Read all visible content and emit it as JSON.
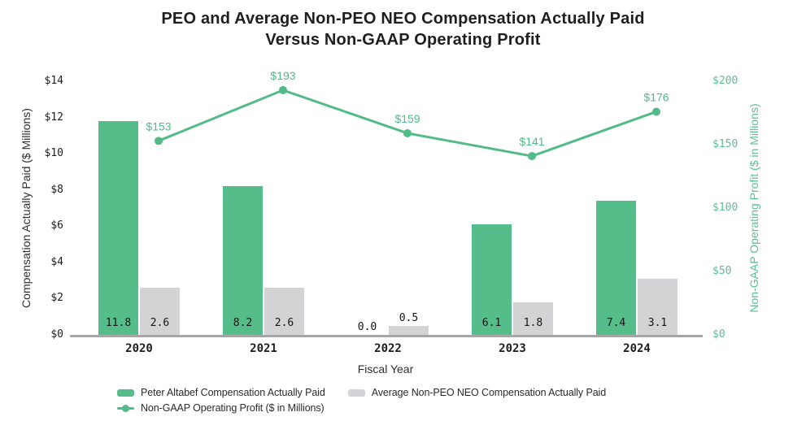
{
  "title": {
    "line1": "PEO and Average Non-PEO NEO Compensation Actually Paid",
    "line2": "Versus Non-GAAP Operating Profit"
  },
  "left_axis": {
    "title": "Compensation Actually Paid ($ Millions)",
    "ticks": [
      {
        "label": "$0",
        "value": 0
      },
      {
        "label": "$2",
        "value": 2
      },
      {
        "label": "$4",
        "value": 4
      },
      {
        "label": "$6",
        "value": 6
      },
      {
        "label": "$8",
        "value": 8
      },
      {
        "label": "$10",
        "value": 10
      },
      {
        "label": "$12",
        "value": 12
      },
      {
        "label": "$14",
        "value": 14
      }
    ]
  },
  "right_axis": {
    "title": "Non-GAAP Operating Profit ($ in Millions)",
    "ticks": [
      {
        "label": "$0",
        "value": 0
      },
      {
        "label": "$50",
        "value": 50
      },
      {
        "label": "$100",
        "value": 100
      },
      {
        "label": "$150",
        "value": 150
      },
      {
        "label": "$200",
        "value": 200
      }
    ]
  },
  "x_axis": {
    "title": "Fiscal Year"
  },
  "chart_data": {
    "type": "bar",
    "categories": [
      "2020",
      "2021",
      "2022",
      "2023",
      "2024"
    ],
    "series": [
      {
        "name": "Peter Altabef Compensation Actually Paid",
        "type": "bar",
        "axis": "left",
        "color": "#55BD8A",
        "values": [
          11.8,
          8.2,
          0.0,
          6.1,
          7.4
        ]
      },
      {
        "name": "Average Non-PEO NEO Compensation Actually Paid",
        "type": "bar",
        "axis": "left",
        "color": "#D3D3D5",
        "values": [
          2.6,
          2.6,
          0.5,
          1.8,
          3.1
        ]
      },
      {
        "name": "Non-GAAP Operating Profit ($ in Millions)",
        "type": "line",
        "axis": "right",
        "color": "#53BB87",
        "values": [
          153,
          193,
          159,
          141,
          176
        ],
        "point_labels": [
          "$153",
          "$193",
          "$159",
          "$141",
          "$176"
        ]
      }
    ],
    "title": "PEO and Average Non-PEO NEO Compensation Actually Paid Versus Non-GAAP Operating Profit",
    "xlabel": "Fiscal Year",
    "ylabel_left": "Compensation Actually Paid ($ Millions)",
    "ylabel_right": "Non-GAAP Operating Profit ($ in Millions)",
    "ylim_left": [
      0,
      14
    ],
    "ylim_right": [
      0,
      200
    ],
    "grid": false,
    "legend_position": "bottom"
  },
  "legend": {
    "items": [
      {
        "label": "Peter Altabef Compensation Actually Paid",
        "swatch": "green-rect"
      },
      {
        "label": "Average Non-PEO NEO Compensation Actually Paid",
        "swatch": "gray-rect"
      },
      {
        "label": "Non-GAAP Operating Profit ($ in Millions)",
        "swatch": "green-line-dot"
      }
    ]
  },
  "colors": {
    "bar_green": "#55BD8A",
    "bar_gray": "#D3D3D5",
    "line_green": "#53BB87",
    "right_axis_text": "#5CBF90",
    "axis_line": "#A6A6A6",
    "title_text": "#1F1F1F"
  }
}
